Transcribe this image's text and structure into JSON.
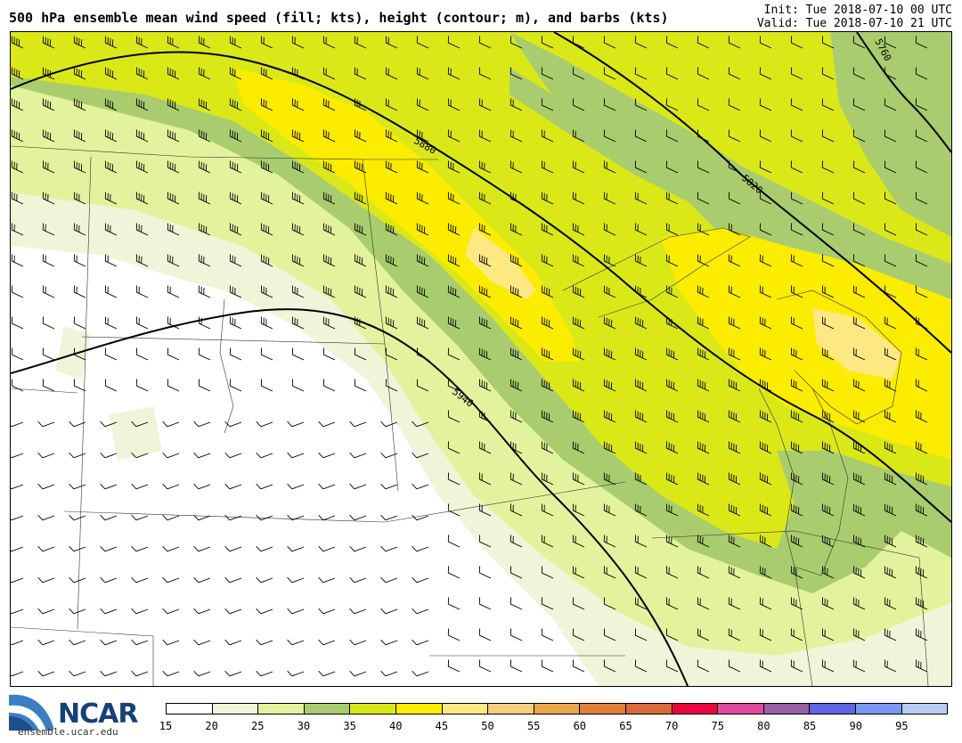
{
  "title": "500 hPa ensemble mean wind speed (fill; kts), height (contour; m), and barbs (kts)",
  "init": "Init: Tue 2018-07-10 00 UTC",
  "valid": "Valid: Tue 2018-07-10 21 UTC",
  "logo": {
    "name": "NCAR",
    "url": "ensemble.ucar.edu"
  },
  "contours": [
    {
      "label": "5940"
    },
    {
      "label": "5880"
    },
    {
      "label": "5820"
    },
    {
      "label": "5760"
    }
  ],
  "colorbar": {
    "ticks": [
      "15",
      "20",
      "25",
      "30",
      "35",
      "40",
      "45",
      "50",
      "55",
      "60",
      "65",
      "70",
      "75",
      "80",
      "85",
      "90",
      "95"
    ],
    "colors": [
      "#ffffff",
      "#eef5d9",
      "#e3f29c",
      "#a9cc6e",
      "#dbe818",
      "#fbec00",
      "#fde882",
      "#f7cd82",
      "#eba64b",
      "#e07f38",
      "#d8693a",
      "#e8053e",
      "#df4a9b",
      "#985fa4",
      "#5f64e0",
      "#7a98f0",
      "#b6ccf4"
    ]
  },
  "map_colors": {
    "c15": "#ffffff",
    "c20": "#eef5d9",
    "c25": "#e3f29c",
    "c30": "#a9cc6e",
    "c35": "#dbe818",
    "c40": "#fbec00",
    "c45": "#fde882"
  }
}
